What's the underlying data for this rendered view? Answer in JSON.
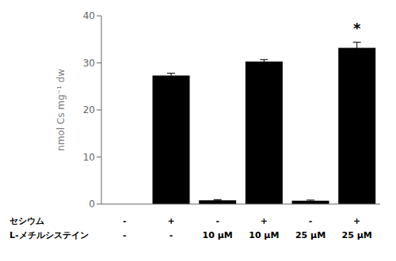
{
  "chart_data": {
    "type": "bar",
    "values": [
      0.0,
      27.3,
      0.8,
      30.3,
      0.7,
      33.2
    ],
    "errors": [
      0.0,
      0.5,
      0.15,
      0.4,
      0.15,
      1.2
    ],
    "color": "#000000",
    "ylabel": "nmol Cs mg⁻¹ dw",
    "ylim": [
      0,
      40
    ],
    "yticks": [
      0,
      10,
      20,
      30,
      40
    ],
    "annotations": [
      {
        "text": "*",
        "x": 5,
        "y": 35.5
      }
    ],
    "table": [
      {
        "label": "セシウム",
        "values": [
          "-",
          "+",
          "-",
          "+",
          "-",
          "+"
        ]
      },
      {
        "label": "L-メチルシステイン",
        "values": [
          "-",
          "-",
          "10 μM",
          "10 μM",
          "25 μM",
          "25 μM"
        ]
      }
    ]
  }
}
